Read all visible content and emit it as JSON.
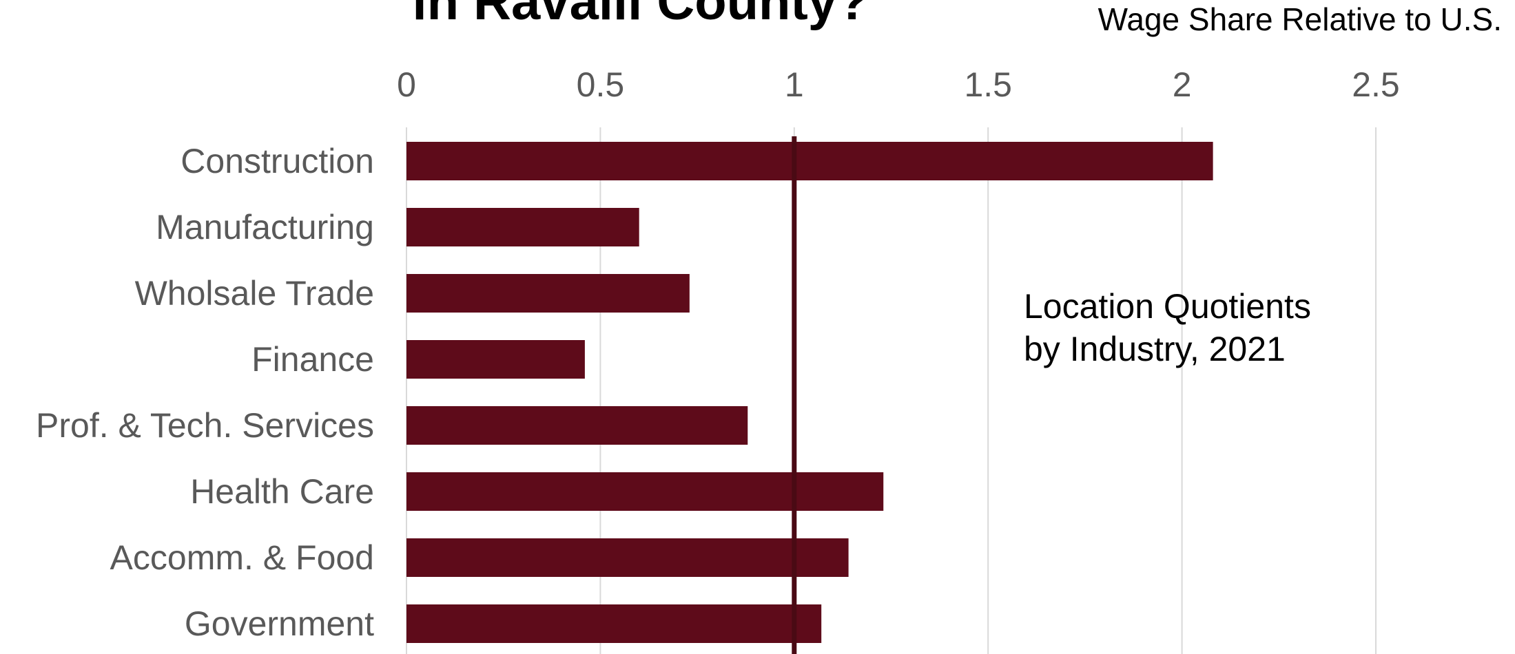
{
  "chart_data": {
    "type": "bar",
    "orientation": "horizontal",
    "title": "in Ravalli County?",
    "xlabel": "Wage Share Relative to U.S.",
    "ylabel": "",
    "xlim": [
      0,
      2.5
    ],
    "xticks": [
      "0",
      "0.5",
      "1",
      "1.5",
      "2",
      "2.5"
    ],
    "xtick_values": [
      0,
      0.5,
      1,
      1.5,
      2,
      2.5
    ],
    "grid": true,
    "x_axis_position": "top",
    "reference_line": 1,
    "annotation_lines": [
      "Location Quotients",
      "by Industry, 2021"
    ],
    "categories": [
      "Construction",
      "Manufacturing",
      "Wholsale Trade",
      "Finance",
      "Prof. & Tech. Services",
      "Health Care",
      "Accomm. & Food",
      "Government"
    ],
    "values": [
      2.08,
      0.6,
      0.73,
      0.46,
      0.88,
      1.23,
      1.14,
      1.07
    ],
    "bar_color": "#5e0b1a",
    "reference_line_color": "#4a0a14"
  }
}
